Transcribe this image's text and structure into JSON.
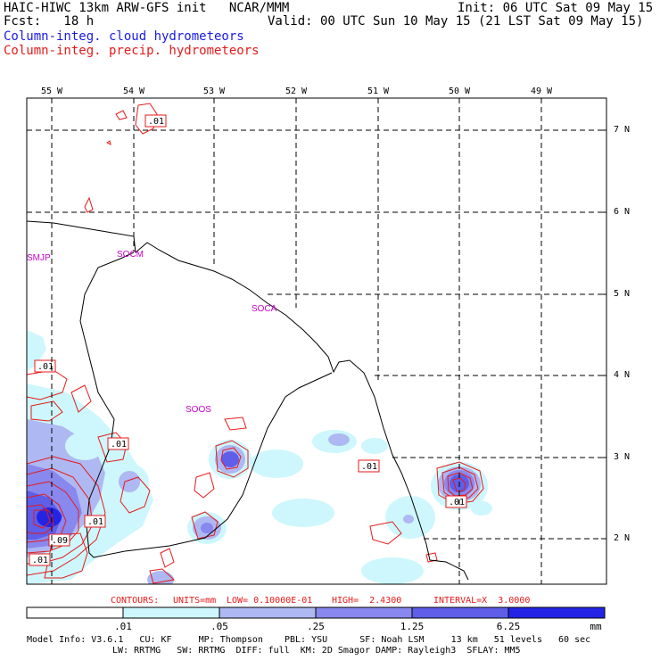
{
  "header": {
    "line1_left": "HAIC-HIWC 13km ARW-GFS init   NCAR/MMM",
    "line1_right": "Init: 06 UTC Sat 09 May 15",
    "line2_left": "Fcst:   18 h",
    "line2_right": "Valid: 00 UTC Sun 10 May 15 (21 LST Sat 09 May 15)",
    "field1": "Column-integ. cloud hydrometeors",
    "field2": "Column-integ. precip. hydrometeors"
  },
  "lon_labels": [
    "55 W",
    "54 W",
    "53 W",
    "52 W",
    "51 W",
    "50 W",
    "49 W"
  ],
  "lat_labels": [
    "7 N",
    "6 N",
    "5 N",
    "4 N",
    "3 N",
    "2 N"
  ],
  "stations": [
    "SMJP",
    "SOCM",
    "SOCA",
    "SOOS"
  ],
  "contour_labels": [
    ".01",
    ".01",
    ".01",
    ".01",
    ".01",
    ".01",
    ".09",
    ".01"
  ],
  "contour_info": {
    "contours": "CONTOURS:",
    "units": "UNITS=mm",
    "low": "LOW= 0.10000E-01",
    "high": "HIGH=  2.4300",
    "interval": "INTERVAL=X  3.0000"
  },
  "legend": {
    "labels": [
      ".01",
      ".05",
      ".25",
      "1.25",
      "6.25"
    ],
    "unit": "mm",
    "colors": [
      "#ffffff",
      "#cdf7fc",
      "#aeb8f2",
      "#8888ee",
      "#5e5ee8",
      "#2424e6"
    ]
  },
  "footer": {
    "line1": "Model Info: V3.6.1   CU: KF     MP: Thompson    PBL: YSU      SF: Noah LSM     13 km   51 levels   60 sec",
    "line2": "LW: RRTMG   SW: RRTMG  DIFF: full  KM: 2D Smagor DAMP: Rayleigh3  SFLAY: MM5"
  }
}
